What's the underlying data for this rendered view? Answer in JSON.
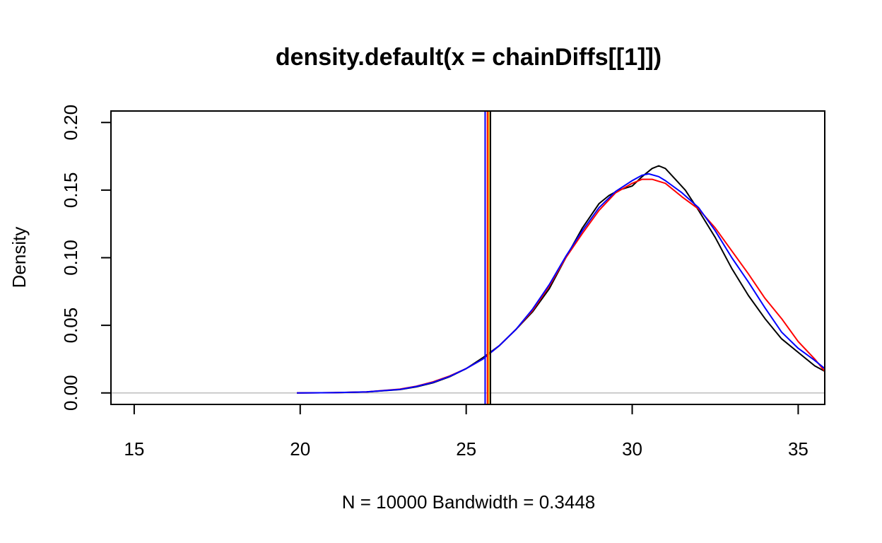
{
  "chart_data": {
    "type": "line",
    "title": "density.default(x = chainDiffs[[1]])",
    "xlabel": "N = 10000   Bandwidth = 0.3448",
    "ylabel": "Density",
    "xlim": [
      14.3,
      35.8
    ],
    "ylim": [
      -0.0085,
      0.2085
    ],
    "x_ticks": [
      15,
      20,
      25,
      30,
      35
    ],
    "x_tick_labels": [
      "15",
      "20",
      "25",
      "30",
      "35"
    ],
    "y_ticks": [
      0.0,
      0.05,
      0.1,
      0.15,
      0.2
    ],
    "y_tick_labels": [
      "0.00",
      "0.05",
      "0.10",
      "0.15",
      "0.20"
    ],
    "zero_line": {
      "y": 0,
      "color": "#bebebe"
    },
    "series": [
      {
        "color": "#000000",
        "x": [
          19.9,
          21,
          22,
          23,
          23.5,
          24,
          24.5,
          25,
          25.5,
          26,
          26.5,
          27,
          27.5,
          28,
          28.5,
          29,
          29.3,
          29.6,
          30,
          30.3,
          30.6,
          30.8,
          31,
          31.3,
          31.6,
          32,
          32.5,
          33,
          33.5,
          34,
          34.5,
          35,
          35.5,
          35.8
        ],
        "y": [
          0.0,
          0.0002,
          0.0007,
          0.0025,
          0.0045,
          0.0075,
          0.012,
          0.018,
          0.026,
          0.035,
          0.047,
          0.06,
          0.077,
          0.1,
          0.122,
          0.14,
          0.146,
          0.15,
          0.153,
          0.16,
          0.166,
          0.168,
          0.166,
          0.158,
          0.15,
          0.135,
          0.115,
          0.092,
          0.072,
          0.055,
          0.04,
          0.03,
          0.02,
          0.016
        ]
      },
      {
        "color": "#ff0000",
        "x": [
          19.9,
          21,
          22,
          23,
          23.5,
          24,
          24.5,
          25,
          25.5,
          26,
          26.5,
          27,
          27.5,
          28,
          28.5,
          29,
          29.5,
          30,
          30.3,
          30.6,
          31,
          31.5,
          32,
          32.5,
          33,
          33.5,
          34,
          34.5,
          35,
          35.5,
          35.8
        ],
        "y": [
          0.0,
          0.0002,
          0.0008,
          0.0028,
          0.005,
          0.0082,
          0.0125,
          0.018,
          0.025,
          0.035,
          0.047,
          0.061,
          0.079,
          0.1,
          0.118,
          0.135,
          0.148,
          0.155,
          0.158,
          0.158,
          0.155,
          0.145,
          0.136,
          0.122,
          0.105,
          0.088,
          0.07,
          0.055,
          0.038,
          0.025,
          0.016
        ]
      },
      {
        "color": "#0000ff",
        "x": [
          19.9,
          21,
          22,
          23,
          23.5,
          24,
          24.5,
          25,
          25.5,
          26,
          26.5,
          27,
          27.5,
          28,
          28.5,
          29,
          29.5,
          30,
          30.3,
          30.5,
          30.8,
          31,
          31.5,
          32,
          32.5,
          33,
          33.5,
          34,
          34.5,
          35,
          35.5,
          35.8
        ],
        "y": [
          0.0,
          0.0002,
          0.0008,
          0.0026,
          0.0048,
          0.0078,
          0.0122,
          0.018,
          0.025,
          0.035,
          0.047,
          0.062,
          0.08,
          0.101,
          0.12,
          0.137,
          0.149,
          0.157,
          0.161,
          0.162,
          0.16,
          0.157,
          0.148,
          0.137,
          0.12,
          0.1,
          0.082,
          0.063,
          0.045,
          0.033,
          0.024,
          0.018
        ]
      }
    ],
    "vlines": [
      {
        "x": 25.57,
        "color": "#0000ff"
      },
      {
        "x": 25.64,
        "color": "#ff0000"
      },
      {
        "x": 25.68,
        "color": "#ffa500"
      },
      {
        "x": 25.73,
        "color": "#000000"
      }
    ],
    "grid": false,
    "legend": "none"
  }
}
